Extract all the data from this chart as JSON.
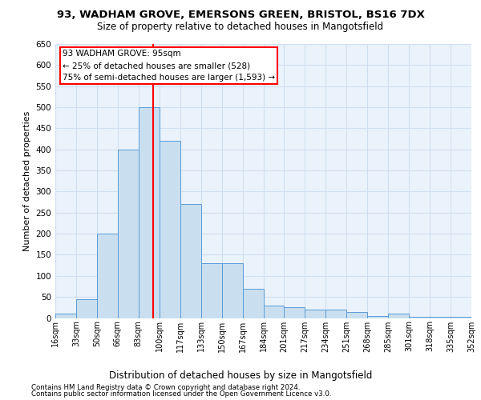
{
  "title_line1": "93, WADHAM GROVE, EMERSONS GREEN, BRISTOL, BS16 7DX",
  "title_line2": "Size of property relative to detached houses in Mangotsfield",
  "xlabel": "Distribution of detached houses by size in Mangotsfield",
  "ylabel": "Number of detached properties",
  "footer_line1": "Contains HM Land Registry data © Crown copyright and database right 2024.",
  "footer_line2": "Contains public sector information licensed under the Open Government Licence v3.0.",
  "bar_labels": [
    "16sqm",
    "33sqm",
    "50sqm",
    "66sqm",
    "83sqm",
    "100sqm",
    "117sqm",
    "133sqm",
    "150sqm",
    "167sqm",
    "184sqm",
    "201sqm",
    "217sqm",
    "234sqm",
    "251sqm",
    "268sqm",
    "285sqm",
    "301sqm",
    "318sqm",
    "335sqm",
    "352sqm"
  ],
  "bar_heights": [
    10,
    45,
    200,
    400,
    500,
    420,
    270,
    130,
    130,
    70,
    30,
    25,
    20,
    20,
    15,
    5,
    10,
    3,
    2,
    2
  ],
  "bar_color": "#c9dff0",
  "bar_edge_color": "#5b9bd5",
  "grid_color": "#d0dff0",
  "bg_color": "#eaf3fb",
  "annotation_property_label": "93 WADHAM GROVE: 95sqm",
  "annotation_line1": "← 25% of detached houses are smaller (528)",
  "annotation_line2": "75% of semi-detached houses are larger (1,593) →",
  "ylim_max": 650,
  "ytick_step": 50,
  "vline_x": 4.706
}
